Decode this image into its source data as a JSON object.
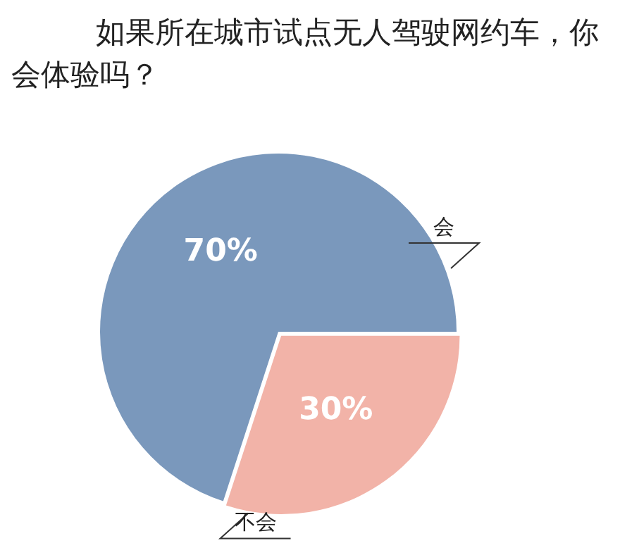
{
  "chart_data": {
    "type": "pie",
    "title": "如果所在城市试点无人驾驶网约车，你会体验吗？",
    "categories": [
      "会",
      "不会"
    ],
    "values": [
      70,
      30
    ],
    "colors": [
      "#7a98bc",
      "#f2b3a8"
    ],
    "value_labels": [
      "70%",
      "30%"
    ]
  }
}
